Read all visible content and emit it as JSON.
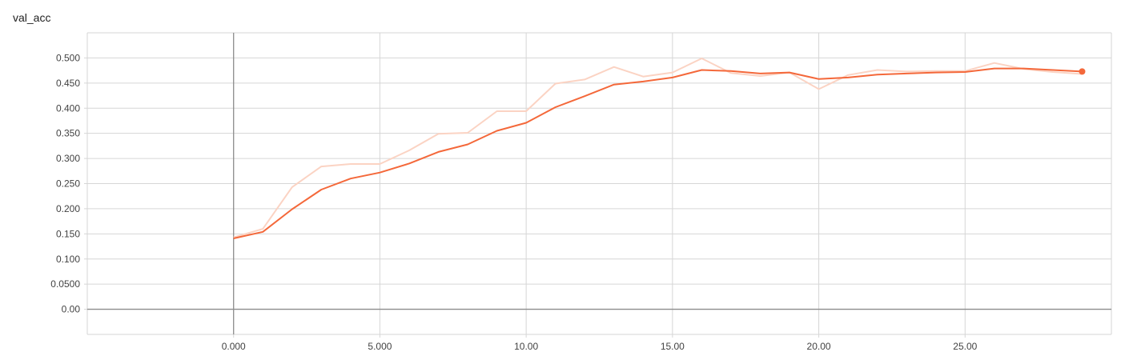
{
  "card": {
    "title": "val_acc"
  },
  "chart_data": {
    "type": "line",
    "title": "val_acc",
    "xlabel": "",
    "ylabel": "",
    "xlim": [
      -5.0,
      30.0
    ],
    "ylim": [
      -0.05,
      0.55
    ],
    "grid": true,
    "x_ticks": [
      0,
      5,
      10,
      15,
      20,
      25
    ],
    "x_tick_labels": [
      "0.000",
      "5.000",
      "10.00",
      "15.00",
      "20.00",
      "25.00"
    ],
    "y_ticks": [
      0,
      0.05,
      0.1,
      0.15,
      0.2,
      0.25,
      0.3,
      0.35,
      0.4,
      0.45,
      0.5
    ],
    "y_tick_labels": [
      "0.00",
      "0.0500",
      "0.100",
      "0.150",
      "0.200",
      "0.250",
      "0.300",
      "0.350",
      "0.400",
      "0.450",
      "0.500"
    ],
    "colors": {
      "smoothed": "#f4683a",
      "raw": "#fbd3c3",
      "axis_line": "#8c8c8c",
      "grid": "#d6d6d6"
    },
    "series": [
      {
        "role": "raw",
        "x": [
          0,
          1,
          2,
          3,
          4,
          5,
          6,
          7,
          8,
          9,
          10,
          11,
          12,
          13,
          14,
          15,
          16,
          17,
          18,
          19,
          20,
          21,
          22,
          23,
          24,
          25,
          26,
          27,
          28,
          29
        ],
        "values": [
          0.143,
          0.16,
          0.243,
          0.284,
          0.289,
          0.289,
          0.316,
          0.349,
          0.351,
          0.394,
          0.394,
          0.449,
          0.457,
          0.482,
          0.463,
          0.471,
          0.499,
          0.47,
          0.464,
          0.471,
          0.438,
          0.466,
          0.476,
          0.473,
          0.474,
          0.474,
          0.49,
          0.478,
          0.472,
          0.468
        ]
      },
      {
        "role": "smoothed",
        "x": [
          0,
          1,
          2,
          3,
          4,
          5,
          6,
          7,
          8,
          9,
          10,
          11,
          12,
          13,
          14,
          15,
          16,
          17,
          18,
          19,
          20,
          21,
          22,
          23,
          24,
          25,
          26,
          27,
          28,
          29
        ],
        "values": [
          0.141,
          0.154,
          0.199,
          0.238,
          0.26,
          0.272,
          0.29,
          0.313,
          0.328,
          0.355,
          0.371,
          0.402,
          0.424,
          0.447,
          0.453,
          0.461,
          0.476,
          0.474,
          0.469,
          0.471,
          0.458,
          0.461,
          0.467,
          0.469,
          0.471,
          0.472,
          0.479,
          0.479,
          0.476,
          0.473
        ]
      }
    ]
  }
}
